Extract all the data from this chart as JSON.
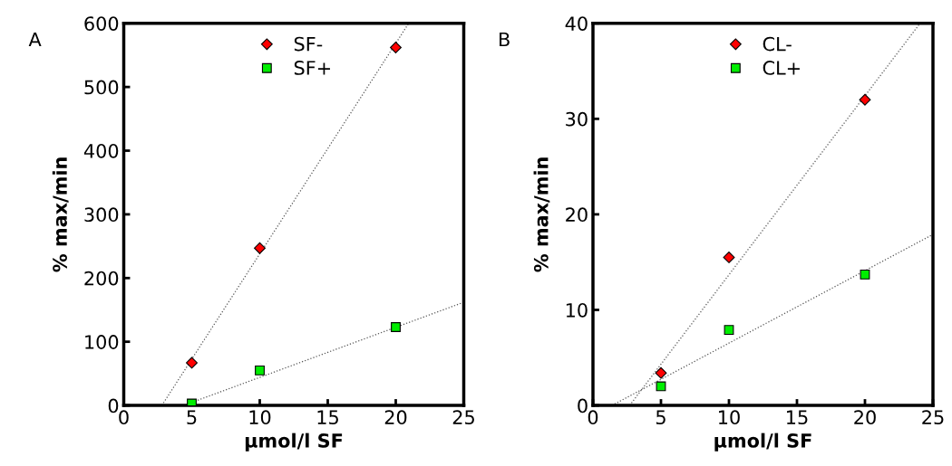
{
  "chart_data": [
    {
      "type": "scatter",
      "annotations": [
        "A"
      ],
      "xlabel": "µmol/l SF",
      "ylabel": "% max/min",
      "xlim": [
        0,
        25
      ],
      "xticks": [
        0,
        5,
        10,
        15,
        20,
        25
      ],
      "ylim": [
        0,
        600
      ],
      "yticks": [
        0,
        100,
        200,
        300,
        400,
        500,
        600
      ],
      "grid": false,
      "legend": "top",
      "series": [
        {
          "name": "SF-",
          "color": "#ff0000",
          "marker": "diamond",
          "x": [
            5,
            10,
            20
          ],
          "values": [
            67,
            247,
            562
          ]
        },
        {
          "name": "SF+",
          "color": "#00ee00",
          "marker": "square",
          "x": [
            5,
            10,
            20
          ],
          "values": [
            3,
            55,
            123
          ]
        },
        {
          "type": "line",
          "color": "#555555",
          "line_style": "dotted",
          "x": [
            2.8,
            20.95
          ],
          "values": [
            0,
            600
          ]
        },
        {
          "type": "line",
          "color": "#555555",
          "line_style": "dotted",
          "x": [
            4.4,
            25
          ],
          "values": [
            0,
            162
          ]
        }
      ]
    },
    {
      "type": "scatter",
      "annotations": [
        "B"
      ],
      "xlabel": "µmol/l SF",
      "ylabel": "% max/min",
      "xlim": [
        0,
        25
      ],
      "xticks": [
        0,
        5,
        10,
        15,
        20,
        25
      ],
      "ylim": [
        0,
        40
      ],
      "yticks": [
        0,
        10,
        20,
        30,
        40
      ],
      "grid": false,
      "legend": "top",
      "series": [
        {
          "name": "CL-",
          "color": "#ff0000",
          "marker": "diamond",
          "x": [
            5,
            10,
            20
          ],
          "values": [
            3.4,
            15.5,
            32.0
          ]
        },
        {
          "name": "CL+",
          "color": "#00ee00",
          "marker": "square",
          "x": [
            5,
            10,
            20
          ],
          "values": [
            2.0,
            7.9,
            13.7
          ]
        },
        {
          "type": "line",
          "color": "#555555",
          "line_style": "dotted",
          "x": [
            2.7,
            24.05
          ],
          "values": [
            0,
            40
          ]
        },
        {
          "type": "line",
          "color": "#555555",
          "line_style": "dotted",
          "x": [
            1.4,
            25
          ],
          "values": [
            0,
            17.9
          ]
        }
      ]
    }
  ]
}
